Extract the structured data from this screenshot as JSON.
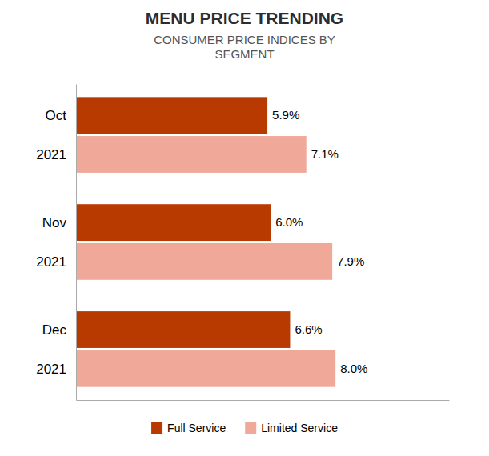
{
  "chart_data": {
    "type": "bar",
    "orientation": "horizontal",
    "title": "MENU PRICE TRENDING",
    "subtitle": "CONSUMER PRICE INDICES BY\nSEGMENT",
    "categories": [
      "Dec\n2021",
      "Nov\n2021",
      "Oct\n2021"
    ],
    "series": [
      {
        "name": "Full Service",
        "color": "#B83A00",
        "values": [
          6.6,
          6.0,
          5.9
        ],
        "value_labels": [
          "6.6%",
          "6.0%",
          "5.9%"
        ]
      },
      {
        "name": "Limited Service",
        "color": "#F0A898",
        "values": [
          8.0,
          7.9,
          7.1
        ],
        "value_labels": [
          "8.0%",
          "7.9%",
          "7.1%"
        ]
      }
    ],
    "xlim": [
      0,
      11.5
    ],
    "xticks": [],
    "data_labels": true,
    "tick_labels": false,
    "grid": false,
    "legend": "bottom"
  }
}
